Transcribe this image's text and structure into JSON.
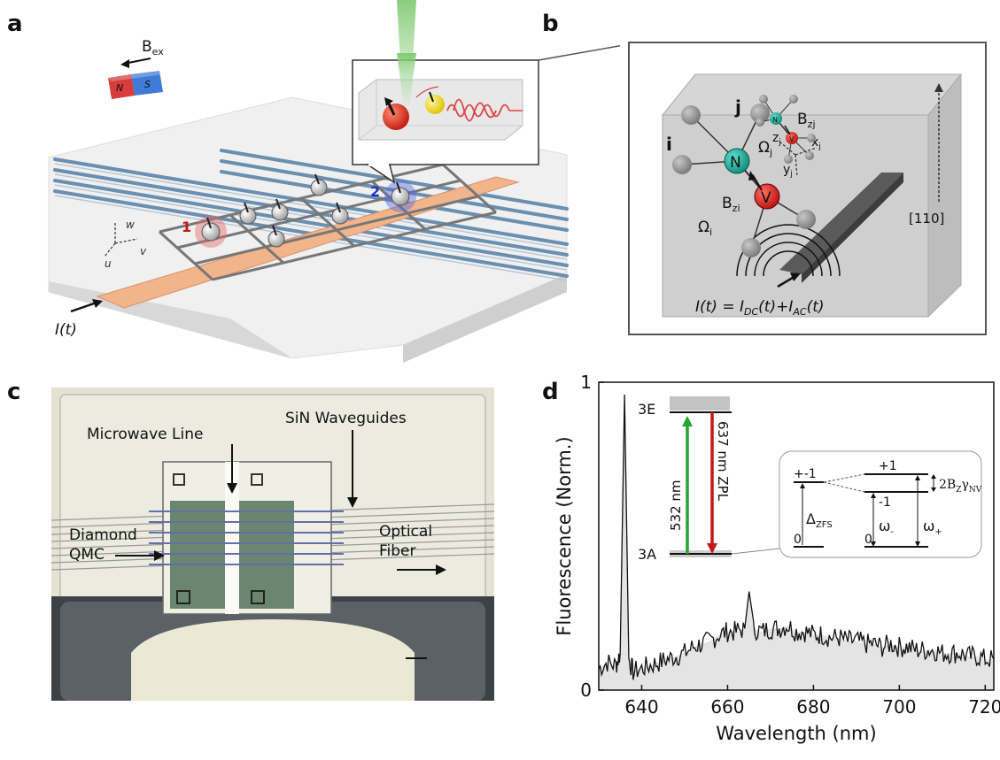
{
  "panels": {
    "a": "a",
    "b": "b",
    "c": "c",
    "d": "d"
  },
  "panel_a": {
    "bex_label": "B",
    "bex_sub": "ex",
    "magnet_n": "N",
    "magnet_s": "S",
    "spin1": "1",
    "spin2": "2",
    "axis_w": "w",
    "axis_v": "v",
    "axis_u": "u",
    "current": "I(t)"
  },
  "panel_b": {
    "i_label": "i",
    "j_label": "j",
    "n_label": "N",
    "v_label": "V",
    "n_small": "N",
    "v_small": "V",
    "bzi": "B",
    "bzi_sub": "zi",
    "bzj": "B",
    "bzj_sub": "zj",
    "omega_i": "Ω",
    "omega_i_sub": "i",
    "omega_j": "Ω",
    "omega_j_sub": "j",
    "axis_x": "x",
    "axis_x_sub": "j",
    "axis_y": "y",
    "axis_y_sub": "j",
    "axis_z": "z",
    "axis_z_sub": "j",
    "direction": "[110]",
    "eq_I": "I(t) = I",
    "eq_dc": "DC",
    "eq_mid": "(t)+I",
    "eq_ac": "AC",
    "eq_end": "(t)"
  },
  "panel_c": {
    "microwave": "Microwave Line",
    "sin": "SiN Waveguides",
    "diamond1": "Diamond",
    "diamond2": "QMC",
    "optical1": "Optical",
    "optical2": "Fiber"
  },
  "panel_d": {
    "inset": {
      "upper": "3E",
      "lower": "3A",
      "excite": "532 nm",
      "emit": "637 nm ZPL",
      "pm1": "+-1",
      "plus1": "+1",
      "minus1": "-1",
      "zero_left": "0",
      "zero_right": "0",
      "dzfs": "Δ",
      "dzfs_sub": "ZFS",
      "wminus": "ω",
      "wminus_sub": "-",
      "wplus": "ω",
      "wplus_sub": "+",
      "split": "2B",
      "split_sub1": "Z",
      "split_mid": "γ",
      "split_sub2": "NV"
    }
  },
  "chart_data": {
    "type": "line",
    "title": "",
    "xlabel": "Wavelength (nm)",
    "ylabel": "Fluorescence (Norm.)",
    "xlim": [
      630,
      722
    ],
    "ylim": [
      0,
      1
    ],
    "x_ticks": [
      "640",
      "660",
      "680",
      "700",
      "720"
    ],
    "x_tick_values": [
      640,
      660,
      680,
      700,
      720
    ],
    "y_ticks": [
      "0",
      "1"
    ],
    "y_tick_values": [
      0,
      1
    ],
    "series": [
      {
        "x": [
          630,
          632,
          634,
          635,
          636,
          637,
          638,
          640,
          642,
          644,
          646,
          648,
          650,
          652,
          654,
          656,
          658,
          660,
          662,
          664,
          665,
          666,
          668,
          670,
          672,
          674,
          676,
          678,
          680,
          682,
          684,
          686,
          688,
          690,
          692,
          694,
          696,
          698,
          700,
          702,
          704,
          706,
          708,
          710,
          712,
          714,
          716,
          718,
          720,
          722
        ],
        "values": [
          0.07,
          0.09,
          0.08,
          0.12,
          0.96,
          0.1,
          0.06,
          0.07,
          0.08,
          0.09,
          0.1,
          0.11,
          0.12,
          0.14,
          0.15,
          0.16,
          0.18,
          0.19,
          0.19,
          0.2,
          0.32,
          0.2,
          0.19,
          0.2,
          0.2,
          0.21,
          0.19,
          0.19,
          0.18,
          0.18,
          0.17,
          0.17,
          0.16,
          0.16,
          0.15,
          0.15,
          0.14,
          0.15,
          0.14,
          0.14,
          0.13,
          0.13,
          0.13,
          0.12,
          0.12,
          0.12,
          0.11,
          0.11,
          0.1,
          0.1
        ]
      }
    ]
  },
  "colors": {
    "red": "#d42020",
    "green": "#27a531",
    "teal": "#20b2a0",
    "blue": "#3a6fd8",
    "orange": "#f2b48a"
  }
}
